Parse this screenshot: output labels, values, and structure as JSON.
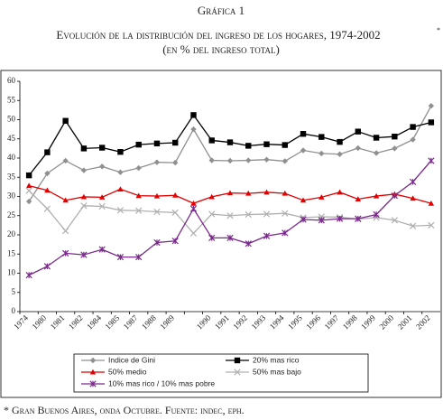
{
  "chart_data": {
    "type": "line",
    "label": "Gráfica 1",
    "title": "Evolución de la distribución del ingreso de los hogares, 1974-2002",
    "title_note": "*",
    "subtitle": "(en % del ingreso total)",
    "footnote": "* Gran Buenos Aires, onda Octubre. Fuente: indec, eph.",
    "categories": [
      "1974",
      "1980",
      "1981",
      "1982",
      "1984",
      "1985",
      "1987",
      "1988",
      "1989",
      null,
      "1990",
      "1991",
      "1992",
      "1993",
      "1994",
      "1995",
      "1996",
      "1997",
      "1998",
      "1999",
      "2000",
      "2001",
      "2002"
    ],
    "ylim": [
      0,
      60
    ],
    "yticks": [
      0,
      5,
      10,
      15,
      20,
      25,
      30,
      35,
      40,
      45,
      50,
      55,
      60
    ],
    "series": [
      {
        "name": "Indice de Gini",
        "color": "#909090",
        "marker": "diamond",
        "values": [
          28.7,
          36,
          39.3,
          36.8,
          37.8,
          36.3,
          37.4,
          38.9,
          38.8,
          47.5,
          39.4,
          39.3,
          39.4,
          39.6,
          39.2,
          42,
          41.2,
          41,
          42.6,
          41.3,
          42.5,
          44.8,
          53.6
        ]
      },
      {
        "name": "20% mas rico",
        "color": "#000000",
        "marker": "square",
        "values": [
          35.5,
          41.5,
          49.7,
          42.5,
          42.7,
          41.6,
          43.5,
          43.8,
          44,
          51.2,
          44.6,
          44.1,
          43.2,
          43.6,
          43.4,
          46.3,
          45.5,
          44.2,
          46.9,
          45.3,
          45.6,
          48.1,
          49.3
        ]
      },
      {
        "name": "50% medio",
        "color": "#e00000",
        "marker": "triangle",
        "values": [
          32.8,
          31.6,
          29,
          29.9,
          29.8,
          31.9,
          30.2,
          30.1,
          30.3,
          28.2,
          29.9,
          30.9,
          30.8,
          31.1,
          30.8,
          29,
          29.8,
          31.1,
          29.3,
          30.1,
          30.6,
          29.5,
          28.2
        ]
      },
      {
        "name": "50% mas bajo",
        "color": "#b0b0b0",
        "marker": "x",
        "values": [
          31.5,
          26.8,
          21,
          27.6,
          27.4,
          26.4,
          26.3,
          26,
          25.8,
          20.4,
          25.4,
          25,
          25.3,
          25.4,
          25.6,
          24.5,
          24.7,
          24.6,
          24.1,
          24.5,
          23.8,
          22.3,
          22.5
        ]
      },
      {
        "name": "10% mas rico / 10% mas pobre",
        "color": "#7b2a8c",
        "marker": "star",
        "values": [
          9.5,
          11.8,
          15.2,
          14.8,
          16.2,
          14.2,
          14.2,
          18,
          18.4,
          26.8,
          19.2,
          19.2,
          17.7,
          19.7,
          20.5,
          24,
          23.8,
          24.2,
          24.2,
          25.3,
          30.2,
          33.8,
          39.3
        ]
      }
    ]
  }
}
